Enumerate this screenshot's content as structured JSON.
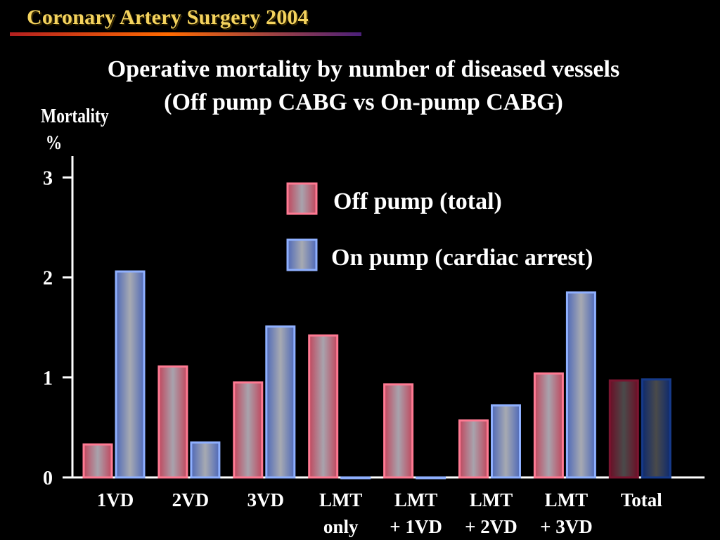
{
  "header": {
    "title": "Coronary Artery Surgery 2004"
  },
  "chart_data": {
    "type": "bar",
    "title": "Operative mortality by number of diseased vessels",
    "subtitle": "(Off pump CABG vs On-pump CABG)",
    "ylabel": "Mortality",
    "yunit": "%",
    "xlabel": "",
    "ylim": [
      0,
      3.2
    ],
    "yticks": [
      0,
      1,
      2,
      3
    ],
    "categories": [
      {
        "lines": [
          "1VD"
        ]
      },
      {
        "lines": [
          "2VD"
        ]
      },
      {
        "lines": [
          "3VD"
        ]
      },
      {
        "lines": [
          "LMT",
          "only"
        ]
      },
      {
        "lines": [
          "LMT",
          "+ 1VD"
        ]
      },
      {
        "lines": [
          "LMT",
          "+ 2VD"
        ]
      },
      {
        "lines": [
          "LMT",
          "+ 3VD"
        ]
      },
      {
        "lines": [
          "Total"
        ],
        "muted": true
      }
    ],
    "series": [
      {
        "name": "Off pump (total)",
        "color": "#e8607a",
        "values": [
          0.33,
          1.11,
          0.95,
          1.42,
          0.93,
          0.57,
          1.04,
          0.97
        ]
      },
      {
        "name": "On pump (cardiac arrest)",
        "color": "#7f9be8",
        "values": [
          2.06,
          0.35,
          1.51,
          0,
          0,
          0.72,
          1.85,
          0.98
        ]
      }
    ],
    "legend": "top-right"
  }
}
